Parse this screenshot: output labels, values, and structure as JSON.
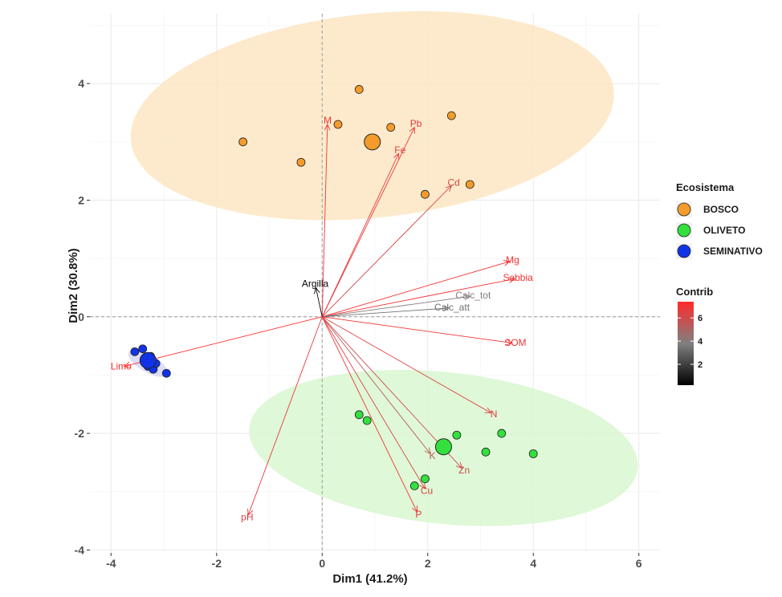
{
  "chart_data": {
    "type": "scatter",
    "subtype": "pca-biplot",
    "xlabel": "Dim1 (41.2%)",
    "ylabel": "Dim2 (30.8%)",
    "xlim": [
      -4.4,
      6.4
    ],
    "ylim": [
      -4.05,
      5.2
    ],
    "xticks": [
      -4,
      -2,
      0,
      2,
      4,
      6
    ],
    "yticks": [
      -4,
      -2,
      0,
      2,
      4
    ],
    "grid": true,
    "legend": {
      "title": "Ecosistema",
      "placement": "right",
      "entries": [
        {
          "name": "BOSCO",
          "color": "#f39c2b"
        },
        {
          "name": "OLIVETO",
          "color": "#33e03d"
        },
        {
          "name": "SEMINATIVO",
          "color": "#1133e6"
        }
      ]
    },
    "colorbar": {
      "title": "Contrib",
      "ticks": [
        2,
        4,
        6
      ],
      "range": [
        0.2,
        7.4
      ],
      "low_color": "#000000",
      "mid_color": "#808080",
      "high_color": "#ff2b2b"
    },
    "ellipses": [
      {
        "group": "BOSCO",
        "cx": 0.95,
        "cy": 3.45,
        "rx": 4.6,
        "ry": 1.75,
        "angle_deg": 6,
        "fill": "#fde6c3"
      },
      {
        "group": "OLIVETO",
        "cx": 2.3,
        "cy": -2.25,
        "rx": 3.7,
        "ry": 1.3,
        "angle_deg": -6,
        "fill": "#d9f7d0"
      },
      {
        "group": "SEMINATIVO",
        "cx": -3.3,
        "cy": -0.8,
        "rx": 0.42,
        "ry": 0.15,
        "angle_deg": -30,
        "fill": "#d7d7f5"
      }
    ],
    "series": [
      {
        "name": "BOSCO",
        "points": [
          [
            -1.5,
            3.0
          ],
          [
            -0.4,
            2.65
          ],
          [
            0.3,
            3.3
          ],
          [
            0.7,
            3.9
          ],
          [
            1.3,
            3.25
          ],
          [
            2.45,
            3.45
          ],
          [
            1.95,
            2.1
          ],
          [
            2.8,
            2.27
          ]
        ],
        "centroid": [
          0.95,
          3.0
        ]
      },
      {
        "name": "OLIVETO",
        "points": [
          [
            0.7,
            -1.68
          ],
          [
            0.85,
            -1.78
          ],
          [
            1.75,
            -2.9
          ],
          [
            1.95,
            -2.78
          ],
          [
            2.55,
            -2.03
          ],
          [
            3.1,
            -2.32
          ],
          [
            3.4,
            -2.0
          ],
          [
            4.0,
            -2.35
          ]
        ],
        "centroid": [
          2.3,
          -2.23
        ]
      },
      {
        "name": "SEMINATIVO",
        "points": [
          [
            -3.55,
            -0.6
          ],
          [
            -3.4,
            -0.55
          ],
          [
            -3.35,
            -0.72
          ],
          [
            -3.3,
            -0.85
          ],
          [
            -3.25,
            -0.68
          ],
          [
            -3.2,
            -0.9
          ],
          [
            -3.15,
            -0.8
          ],
          [
            -2.95,
            -0.97
          ]
        ],
        "centroid": [
          -3.3,
          -0.75
        ]
      }
    ],
    "variables": [
      {
        "name": "M",
        "x": 0.1,
        "y": 3.3,
        "contrib": 6.8
      },
      {
        "name": "Pb",
        "x": 1.75,
        "y": 3.25,
        "contrib": 6.9
      },
      {
        "name": "Fe",
        "x": 1.45,
        "y": 2.8,
        "contrib": 6.6
      },
      {
        "name": "Cd",
        "x": 2.45,
        "y": 2.25,
        "contrib": 6.2
      },
      {
        "name": "Mg",
        "x": 3.55,
        "y": 0.95,
        "contrib": 7.2
      },
      {
        "name": "Sabbia",
        "x": 3.65,
        "y": 0.65,
        "contrib": 7.1
      },
      {
        "name": "Calc_tot",
        "x": 2.8,
        "y": 0.35,
        "contrib": 4.0
      },
      {
        "name": "Calc_att",
        "x": 2.4,
        "y": 0.15,
        "contrib": 3.4
      },
      {
        "name": "SOM",
        "x": 3.6,
        "y": -0.45,
        "contrib": 7.0
      },
      {
        "name": "Argilla",
        "x": -0.12,
        "y": 0.5,
        "contrib": 0.3
      },
      {
        "name": "Limo",
        "x": -3.75,
        "y": -0.85,
        "contrib": 7.3
      },
      {
        "name": "N",
        "x": 3.2,
        "y": -1.65,
        "contrib": 6.5
      },
      {
        "name": "K",
        "x": 2.05,
        "y": -2.35,
        "contrib": 5.4
      },
      {
        "name": "Zn",
        "x": 2.65,
        "y": -2.6,
        "contrib": 6.0
      },
      {
        "name": "Cu",
        "x": 1.95,
        "y": -2.95,
        "contrib": 6.3
      },
      {
        "name": "P",
        "x": 1.8,
        "y": -3.35,
        "contrib": 6.9
      },
      {
        "name": "pH",
        "x": -1.4,
        "y": -3.4,
        "contrib": 6.7
      }
    ]
  }
}
